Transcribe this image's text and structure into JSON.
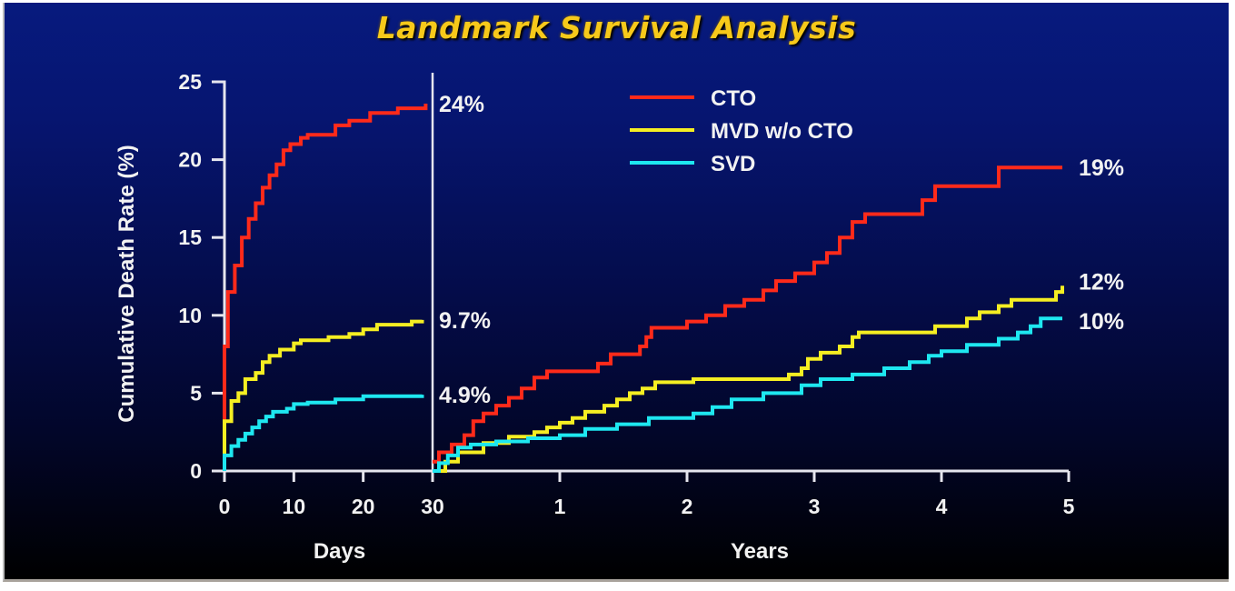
{
  "chart_data": {
    "type": "line",
    "title": "Landmark Survival Analysis",
    "ylabel": "Cumulative Death Rate (%)",
    "ylim": [
      0,
      25
    ],
    "yticks": [
      0,
      5,
      10,
      15,
      20,
      25
    ],
    "grid": false,
    "legend_position": "top-right",
    "panels": [
      {
        "name": "early",
        "xlabel": "Days",
        "xlim": [
          0,
          30
        ],
        "xticks": [
          0,
          10,
          20,
          30
        ],
        "xtick_labels": [
          "0",
          "10",
          "20",
          "30"
        ]
      },
      {
        "name": "late",
        "xlabel": "Years",
        "xlim": [
          0,
          5
        ],
        "xticks": [
          0,
          1,
          2,
          3,
          4,
          5
        ],
        "xtick_labels": [
          "30",
          "1",
          "2",
          "3",
          "4",
          "5"
        ]
      }
    ],
    "series": [
      {
        "name": "CTO",
        "color": "#ff2a1a",
        "early": {
          "x": [
            0,
            0,
            0.5,
            1.5,
            2.5,
            3.5,
            4.5,
            5.5,
            6.5,
            7.5,
            8.5,
            9.5,
            11,
            12,
            16,
            18,
            21,
            25,
            29
          ],
          "y": [
            0,
            8,
            11.5,
            13.2,
            15,
            16.2,
            17.2,
            18.2,
            19,
            19.7,
            20.6,
            21,
            21.4,
            21.6,
            22.2,
            22.5,
            23,
            23.3,
            23.6
          ]
        },
        "late": {
          "x": [
            0,
            0.05,
            0.15,
            0.25,
            0.32,
            0.4,
            0.5,
            0.6,
            0.7,
            0.8,
            0.9,
            1.3,
            1.4,
            1.63,
            1.68,
            1.72,
            2.0,
            2.15,
            2.3,
            2.45,
            2.6,
            2.7,
            2.85,
            3.0,
            3.1,
            3.2,
            3.3,
            3.4,
            3.85,
            3.95,
            4.45,
            4.95
          ],
          "y": [
            0.6,
            1.2,
            1.7,
            2.3,
            3.2,
            3.7,
            4.2,
            4.7,
            5.3,
            6.0,
            6.4,
            6.9,
            7.5,
            8.0,
            8.6,
            9.2,
            9.6,
            10.0,
            10.6,
            11.0,
            11.6,
            12.2,
            12.7,
            13.4,
            14.0,
            15.0,
            16.0,
            16.5,
            17.4,
            18.3,
            19.5,
            19.5
          ]
        },
        "early_end_label": "24%",
        "late_end_label": "19%"
      },
      {
        "name": "MVD w/o CTO",
        "color": "#f5ee22",
        "early": {
          "x": [
            0,
            0,
            1,
            2,
            3,
            4.5,
            5.5,
            6.5,
            8,
            10,
            11,
            15,
            18,
            20,
            22,
            27,
            28.5
          ],
          "y": [
            0,
            3.2,
            4.5,
            5.0,
            5.9,
            6.3,
            7.0,
            7.4,
            7.8,
            8.2,
            8.4,
            8.6,
            8.8,
            9.1,
            9.4,
            9.6,
            9.7
          ]
        },
        "late": {
          "x": [
            0,
            0.1,
            0.2,
            0.4,
            0.6,
            0.8,
            0.9,
            1.0,
            1.1,
            1.2,
            1.35,
            1.45,
            1.55,
            1.65,
            1.75,
            2.05,
            2.8,
            2.9,
            2.95,
            3.05,
            3.2,
            3.3,
            3.35,
            3.95,
            4.2,
            4.3,
            4.45,
            4.55,
            4.9,
            4.95
          ],
          "y": [
            0,
            0.6,
            1.2,
            1.8,
            2.2,
            2.5,
            2.8,
            3.1,
            3.4,
            3.8,
            4.2,
            4.6,
            5.0,
            5.3,
            5.7,
            5.9,
            6.2,
            6.6,
            7.2,
            7.6,
            8.0,
            8.6,
            8.9,
            9.3,
            9.8,
            10.2,
            10.6,
            11.0,
            11.5,
            11.9
          ]
        },
        "early_end_label": "9.7%",
        "late_end_label": "12%"
      },
      {
        "name": "SVD",
        "color": "#1ee7f0",
        "early": {
          "x": [
            0,
            0,
            1,
            2,
            3,
            4,
            5,
            6,
            7,
            9,
            10,
            12,
            16,
            20,
            28.5
          ],
          "y": [
            0,
            1.0,
            1.6,
            2.0,
            2.4,
            2.8,
            3.2,
            3.5,
            3.8,
            4.0,
            4.3,
            4.4,
            4.6,
            4.8,
            4.9
          ]
        },
        "late": {
          "x": [
            0,
            0.05,
            0.12,
            0.2,
            0.3,
            0.5,
            0.75,
            1.0,
            1.2,
            1.45,
            1.7,
            2.05,
            2.2,
            2.35,
            2.6,
            2.9,
            3.05,
            3.3,
            3.55,
            3.75,
            3.9,
            4.0,
            4.2,
            4.45,
            4.6,
            4.7,
            4.78,
            4.95
          ],
          "y": [
            0,
            0.5,
            1.0,
            1.5,
            1.7,
            1.9,
            2.1,
            2.3,
            2.7,
            3.0,
            3.4,
            3.7,
            4.1,
            4.6,
            5.0,
            5.5,
            5.9,
            6.2,
            6.6,
            7.0,
            7.4,
            7.7,
            8.1,
            8.5,
            8.9,
            9.3,
            9.8,
            9.8
          ]
        },
        "early_end_label": "4.9%",
        "late_end_label": "10%"
      }
    ]
  }
}
